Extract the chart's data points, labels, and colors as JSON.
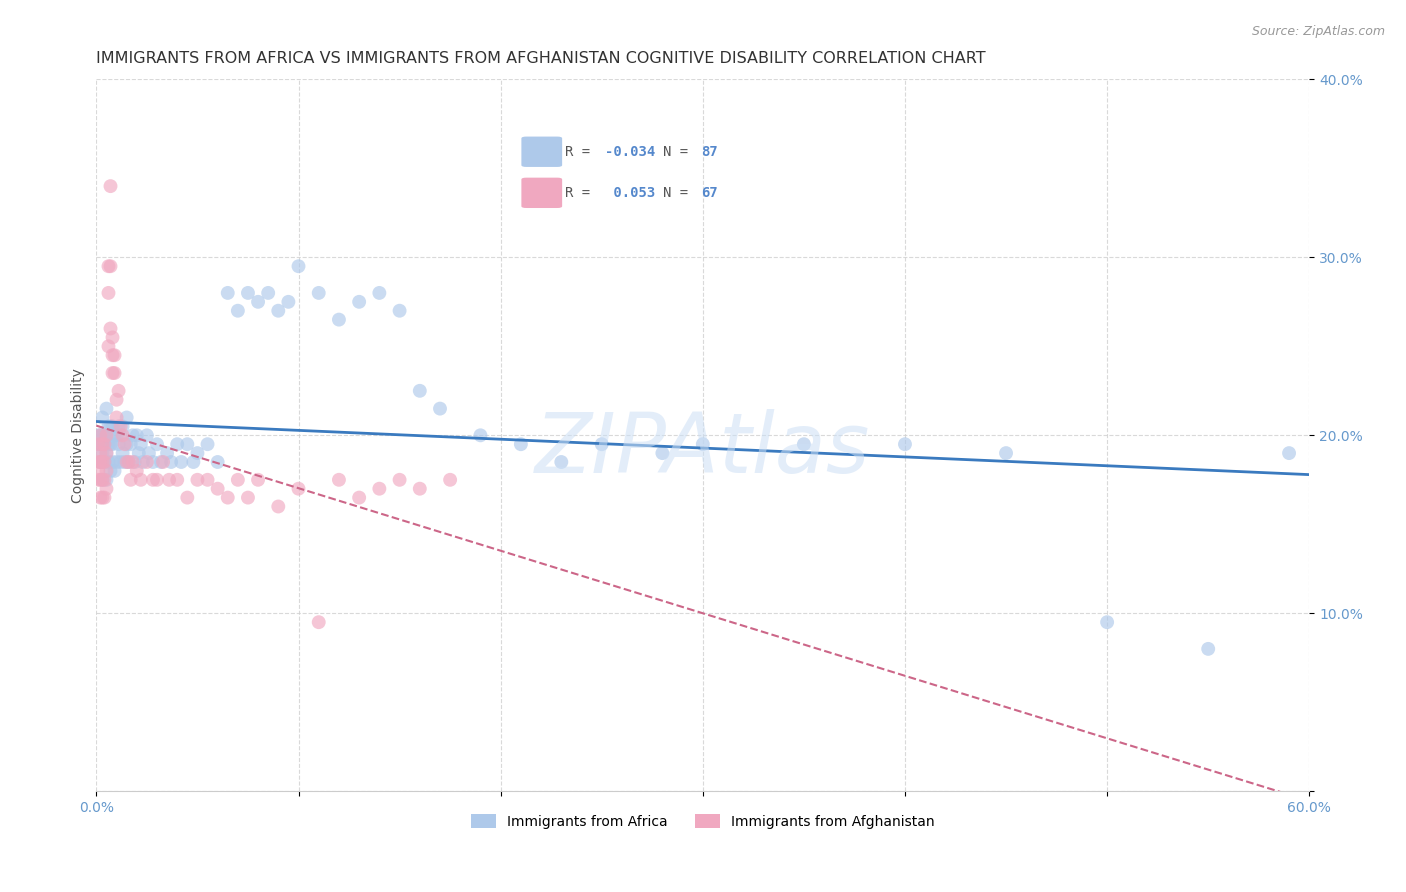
{
  "title": "IMMIGRANTS FROM AFRICA VS IMMIGRANTS FROM AFGHANISTAN COGNITIVE DISABILITY CORRELATION CHART",
  "source": "Source: ZipAtlas.com",
  "ylabel": "Cognitive Disability",
  "xlim": [
    0.0,
    0.6
  ],
  "ylim": [
    0.0,
    0.4
  ],
  "xtick_vals": [
    0.0,
    0.1,
    0.2,
    0.3,
    0.4,
    0.5,
    0.6
  ],
  "xtick_labels": [
    "0.0%",
    "",
    "",
    "",
    "",
    "",
    "60.0%"
  ],
  "ytick_vals": [
    0.0,
    0.1,
    0.2,
    0.3,
    0.4
  ],
  "ytick_labels_right": [
    "",
    "10.0%",
    "20.0%",
    "30.0%",
    "40.0%"
  ],
  "series": [
    {
      "name": "Immigrants from Africa",
      "color": "#aec9ea",
      "edge_color": "none",
      "R": -0.034,
      "N": 87,
      "trend_color": "#3a7abf",
      "trend_style": "solid",
      "trend_lw": 2.0,
      "x": [
        0.001,
        0.001,
        0.002,
        0.002,
        0.002,
        0.003,
        0.003,
        0.003,
        0.003,
        0.004,
        0.004,
        0.004,
        0.005,
        0.005,
        0.005,
        0.005,
        0.006,
        0.006,
        0.006,
        0.007,
        0.007,
        0.007,
        0.008,
        0.008,
        0.008,
        0.009,
        0.009,
        0.01,
        0.01,
        0.011,
        0.011,
        0.012,
        0.012,
        0.013,
        0.013,
        0.014,
        0.015,
        0.015,
        0.016,
        0.017,
        0.018,
        0.019,
        0.02,
        0.021,
        0.022,
        0.023,
        0.025,
        0.026,
        0.028,
        0.03,
        0.032,
        0.035,
        0.037,
        0.04,
        0.042,
        0.045,
        0.048,
        0.05,
        0.055,
        0.06,
        0.065,
        0.07,
        0.075,
        0.08,
        0.085,
        0.09,
        0.095,
        0.1,
        0.11,
        0.12,
        0.13,
        0.14,
        0.15,
        0.16,
        0.17,
        0.19,
        0.21,
        0.23,
        0.25,
        0.28,
        0.3,
        0.35,
        0.4,
        0.45,
        0.5,
        0.55,
        0.59
      ],
      "y": [
        0.195,
        0.2,
        0.185,
        0.195,
        0.2,
        0.175,
        0.19,
        0.2,
        0.21,
        0.185,
        0.195,
        0.2,
        0.175,
        0.19,
        0.2,
        0.215,
        0.185,
        0.195,
        0.205,
        0.18,
        0.195,
        0.205,
        0.185,
        0.195,
        0.205,
        0.18,
        0.2,
        0.185,
        0.2,
        0.195,
        0.205,
        0.185,
        0.2,
        0.19,
        0.205,
        0.185,
        0.195,
        0.21,
        0.185,
        0.195,
        0.2,
        0.185,
        0.2,
        0.19,
        0.195,
        0.185,
        0.2,
        0.19,
        0.185,
        0.195,
        0.185,
        0.19,
        0.185,
        0.195,
        0.185,
        0.195,
        0.185,
        0.19,
        0.195,
        0.185,
        0.28,
        0.27,
        0.28,
        0.275,
        0.28,
        0.27,
        0.275,
        0.295,
        0.28,
        0.265,
        0.275,
        0.28,
        0.27,
        0.225,
        0.215,
        0.2,
        0.195,
        0.185,
        0.195,
        0.19,
        0.195,
        0.195,
        0.195,
        0.19,
        0.095,
        0.08,
        0.19
      ]
    },
    {
      "name": "Immigrants from Afghanistan",
      "color": "#f0a8c0",
      "edge_color": "none",
      "R": 0.053,
      "N": 67,
      "trend_color": "#cc6688",
      "trend_style": "dashed",
      "trend_lw": 1.5,
      "x": [
        0.001,
        0.001,
        0.001,
        0.001,
        0.002,
        0.002,
        0.002,
        0.002,
        0.002,
        0.003,
        0.003,
        0.003,
        0.003,
        0.004,
        0.004,
        0.004,
        0.004,
        0.005,
        0.005,
        0.005,
        0.005,
        0.006,
        0.006,
        0.006,
        0.007,
        0.007,
        0.007,
        0.008,
        0.008,
        0.008,
        0.009,
        0.009,
        0.01,
        0.01,
        0.011,
        0.012,
        0.013,
        0.014,
        0.015,
        0.016,
        0.017,
        0.018,
        0.02,
        0.022,
        0.025,
        0.028,
        0.03,
        0.033,
        0.036,
        0.04,
        0.045,
        0.05,
        0.055,
        0.06,
        0.065,
        0.07,
        0.075,
        0.08,
        0.09,
        0.1,
        0.11,
        0.12,
        0.13,
        0.14,
        0.15,
        0.16,
        0.175
      ],
      "y": [
        0.195,
        0.185,
        0.18,
        0.175,
        0.2,
        0.19,
        0.185,
        0.175,
        0.165,
        0.195,
        0.185,
        0.175,
        0.165,
        0.195,
        0.185,
        0.175,
        0.165,
        0.2,
        0.19,
        0.18,
        0.17,
        0.28,
        0.295,
        0.25,
        0.34,
        0.295,
        0.26,
        0.255,
        0.245,
        0.235,
        0.245,
        0.235,
        0.22,
        0.21,
        0.225,
        0.205,
        0.2,
        0.195,
        0.185,
        0.185,
        0.175,
        0.185,
        0.18,
        0.175,
        0.185,
        0.175,
        0.175,
        0.185,
        0.175,
        0.175,
        0.165,
        0.175,
        0.175,
        0.17,
        0.165,
        0.175,
        0.165,
        0.175,
        0.16,
        0.17,
        0.095,
        0.175,
        0.165,
        0.17,
        0.175,
        0.17,
        0.175
      ]
    }
  ],
  "watermark": "ZIPAtlas",
  "watermark_color": "#ccdff5",
  "watermark_alpha": 0.55,
  "watermark_fontsize": 60,
  "title_fontsize": 11.5,
  "axis_label_fontsize": 10,
  "tick_fontsize": 10,
  "source_fontsize": 9,
  "scatter_size": 100,
  "scatter_alpha": 0.65,
  "background_color": "#ffffff",
  "grid_color": "#d0d0d0",
  "grid_style": "--",
  "grid_alpha": 0.8,
  "legend_box_color": "#f0f0f5",
  "legend_box_edge": "#ccccdd"
}
